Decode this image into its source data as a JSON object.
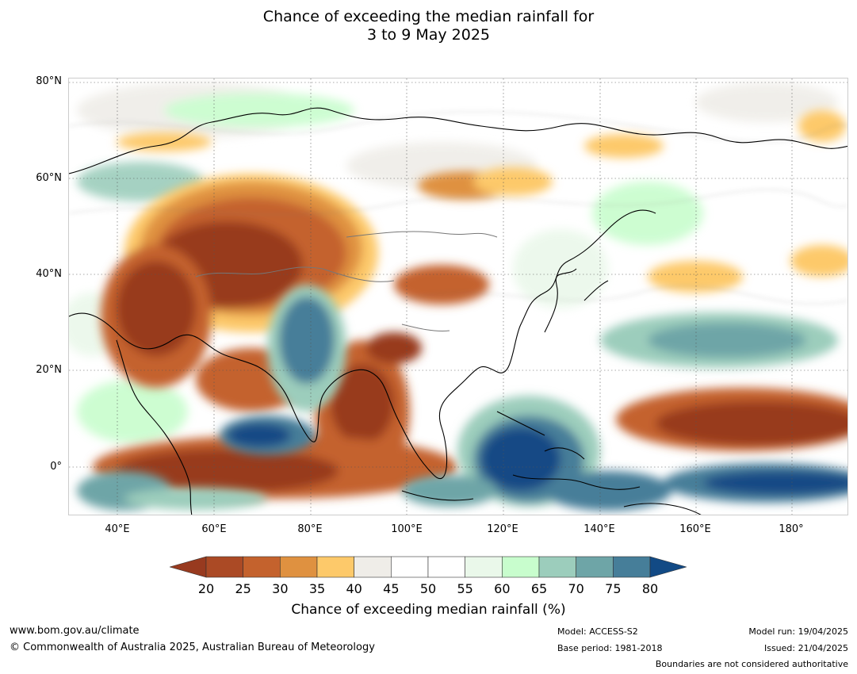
{
  "title_line1": "Chance of exceeding the median rainfall for",
  "title_line2": "3 to 9 May 2025",
  "lat_labels": [
    "80°N",
    "60°N",
    "40°N",
    "20°N",
    "0°"
  ],
  "lon_labels": [
    "40°E",
    "60°E",
    "80°E",
    "100°E",
    "120°E",
    "140°E",
    "160°E",
    "180°"
  ],
  "colorbar": {
    "ticks": [
      "20",
      "25",
      "30",
      "35",
      "40",
      "45",
      "50",
      "55",
      "60",
      "65",
      "70",
      "75",
      "80"
    ],
    "colors": [
      "#983a1f",
      "#ab4a25",
      "#c4622d",
      "#df9140",
      "#fdc96a",
      "#efede8",
      "#ffffff",
      "#ffffff",
      "#eaf8ea",
      "#c8fdcd",
      "#9ccdbc",
      "#6ea5a7",
      "#467e99",
      "#124a85",
      "#124a85"
    ],
    "label": "Chance of exceeding median rainfall (%)"
  },
  "footer": {
    "url": "www.bom.gov.au/climate",
    "copyright": "© Commonwealth of Australia 2025, Australian Bureau of Meteorology",
    "model": "Model: ACCESS-S2",
    "base_period": "Base period: 1981-2018",
    "model_run": "Model run: 19/04/2025",
    "issued": "Issued: 21/04/2025",
    "disclaimer": "Boundaries are not considered authoritative"
  }
}
